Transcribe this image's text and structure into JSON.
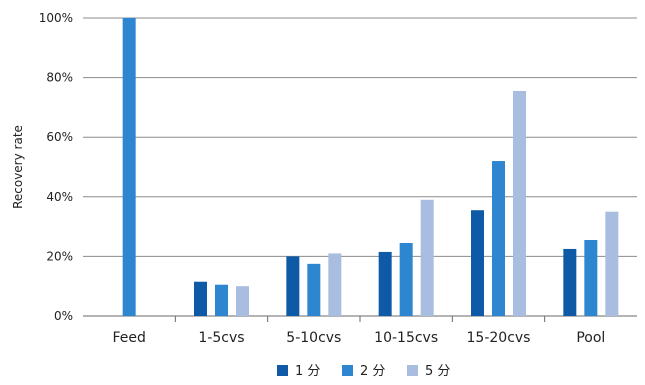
{
  "chart_data": {
    "type": "bar",
    "title": "",
    "xlabel": "",
    "ylabel": "Recovery rate",
    "ylim": [
      0,
      100
    ],
    "yticks": [
      "0%",
      "20%",
      "40%",
      "60%",
      "80%",
      "100%"
    ],
    "categories": [
      "Feed",
      "1-5cvs",
      "5-10cvs",
      "10-15cvs",
      "15-20cvs",
      "Pool"
    ],
    "grid": true,
    "legend_position": "bottom-center",
    "series": [
      {
        "name": "1 分",
        "color": "#0e5aa7",
        "values": [
          null,
          11.5,
          20,
          21.5,
          35.5,
          22.5
        ]
      },
      {
        "name": "2 分",
        "color": "#2e86d0",
        "values": [
          100,
          10.5,
          17.5,
          24.5,
          52,
          25.5
        ]
      },
      {
        "name": "5 分",
        "color": "#a8bde0",
        "values": [
          null,
          10,
          21,
          39,
          75.5,
          35
        ]
      }
    ]
  }
}
